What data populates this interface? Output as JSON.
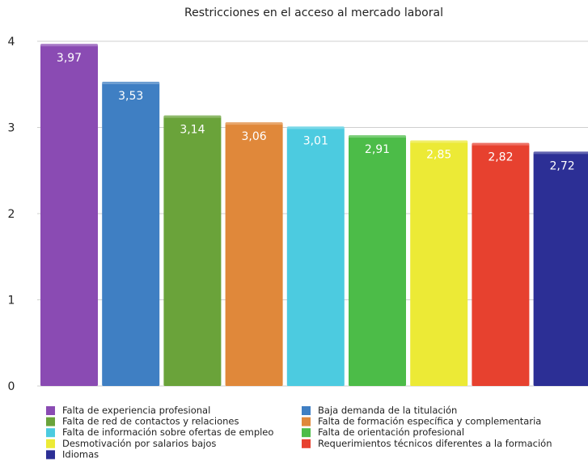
{
  "chart_data": {
    "type": "bar",
    "title": "Restricciones en el acceso al mercado laboral",
    "categories": [
      "Falta de experiencia profesional",
      "Baja demanda de la titulación",
      "Falta de red de contactos y relaciones",
      "Falta de formación específica y complementaria",
      "Falta de información sobre ofertas de empleo",
      "Falta de orientación profesional",
      "Desmotivación por salarios bajos",
      "Requerimientos técnicos diferentes a la formación",
      "Idiomas"
    ],
    "values": [
      3.97,
      3.53,
      3.14,
      3.06,
      3.01,
      2.91,
      2.85,
      2.82,
      2.72
    ],
    "value_labels": [
      "3,97",
      "3,53",
      "3,14",
      "3,06",
      "3,01",
      "2,91",
      "2,85",
      "2,82",
      "2,72"
    ],
    "colors": [
      "#8a4bb3",
      "#3f7fc3",
      "#6aa33a",
      "#e0883a",
      "#4ccbe0",
      "#4cbc48",
      "#ecea36",
      "#e7412f",
      "#2c2f95"
    ],
    "ylim": [
      0,
      4
    ],
    "yticks": [
      0,
      1,
      2,
      3,
      4
    ],
    "ytick_labels": [
      "0",
      "1",
      "2",
      "3",
      "4"
    ],
    "grid": true,
    "legend_position": "bottom"
  }
}
